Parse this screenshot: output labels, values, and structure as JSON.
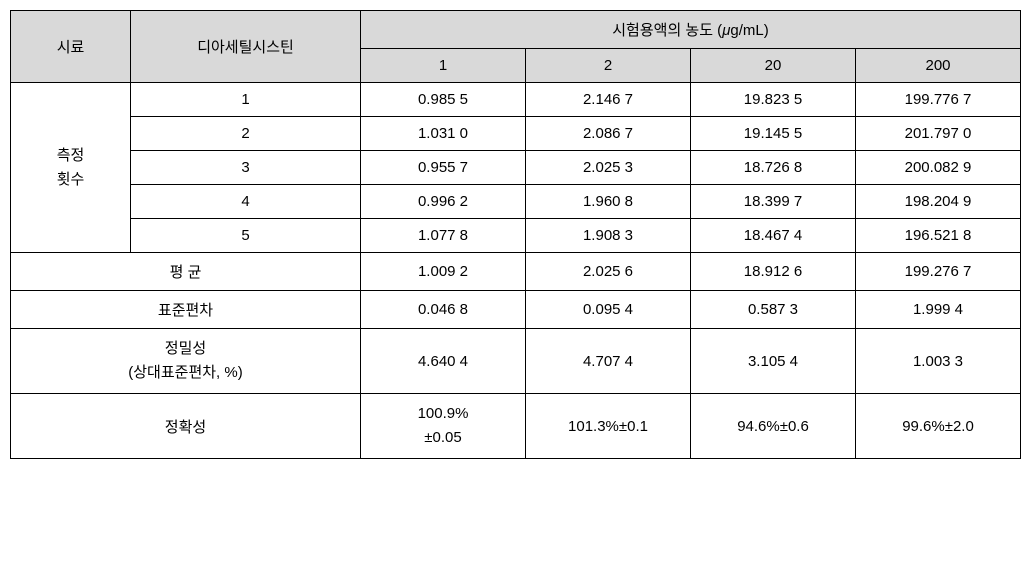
{
  "table": {
    "headers": {
      "sample": "시료",
      "diacetyl": "디아세틸시스틴",
      "concentration_title": "시험용액의 농도 (μg/mL)",
      "conc_levels": [
        "1",
        "2",
        "20",
        "200"
      ]
    },
    "measurement_label": "측정\n횟수",
    "rows": [
      {
        "label": "1",
        "values": [
          "0.985 5",
          "2.146 7",
          "19.823 5",
          "199.776 7"
        ]
      },
      {
        "label": "2",
        "values": [
          "1.031 0",
          "2.086 7",
          "19.145 5",
          "201.797 0"
        ]
      },
      {
        "label": "3",
        "values": [
          "0.955 7",
          "2.025 3",
          "18.726 8",
          "200.082 9"
        ]
      },
      {
        "label": "4",
        "values": [
          "0.996 2",
          "1.960 8",
          "18.399 7",
          "198.204 9"
        ]
      },
      {
        "label": "5",
        "values": [
          "1.077 8",
          "1.908 3",
          "18.467 4",
          "196.521 8"
        ]
      }
    ],
    "summary": [
      {
        "label": "평  균",
        "values": [
          "1.009 2",
          "2.025 6",
          "18.912 6",
          "199.276 7"
        ]
      },
      {
        "label": "표준편차",
        "values": [
          "0.046 8",
          "0.095 4",
          "0.587 3",
          "1.999 4"
        ]
      },
      {
        "label": "정밀성\n(상대표준편차, %)",
        "values": [
          "4.640 4",
          "4.707 4",
          "3.105 4",
          "1.003 3"
        ]
      },
      {
        "label": "정확성",
        "values": [
          "100.9%\n±0.05",
          "101.3%±0.1",
          "94.6%±0.6",
          "99.6%±2.0"
        ]
      }
    ]
  }
}
